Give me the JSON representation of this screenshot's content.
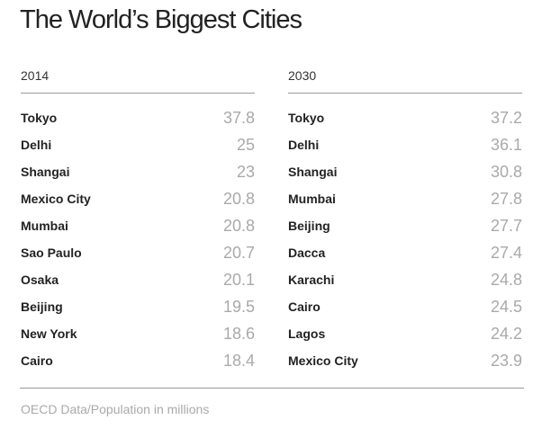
{
  "title": "The World’s Biggest Cities",
  "source": "OECD Data/Population in millions",
  "chart_data": {
    "type": "table",
    "title": "The World’s Biggest Cities",
    "note": "OECD Data/Population in millions",
    "tables": [
      {
        "header": "2014",
        "rows": [
          {
            "city": "Tokyo",
            "value": "37.8"
          },
          {
            "city": "Delhi",
            "value": "25"
          },
          {
            "city": "Shangai",
            "value": "23"
          },
          {
            "city": "Mexico City",
            "value": "20.8"
          },
          {
            "city": "Mumbai",
            "value": "20.8"
          },
          {
            "city": "Sao Paulo",
            "value": "20.7"
          },
          {
            "city": "Osaka",
            "value": "20.1"
          },
          {
            "city": "Beijing",
            "value": "19.5"
          },
          {
            "city": "New York",
            "value": "18.6"
          },
          {
            "city": "Cairo",
            "value": "18.4"
          }
        ]
      },
      {
        "header": "2030",
        "rows": [
          {
            "city": "Tokyo",
            "value": "37.2"
          },
          {
            "city": "Delhi",
            "value": "36.1"
          },
          {
            "city": "Shangai",
            "value": "30.8"
          },
          {
            "city": "Mumbai",
            "value": "27.8"
          },
          {
            "city": "Beijing",
            "value": "27.7"
          },
          {
            "city": "Dacca",
            "value": "27.4"
          },
          {
            "city": "Karachi",
            "value": "24.8"
          },
          {
            "city": "Cairo",
            "value": "24.5"
          },
          {
            "city": "Lagos",
            "value": "24.2"
          },
          {
            "city": "Mexico City",
            "value": "23.9"
          }
        ]
      }
    ]
  }
}
